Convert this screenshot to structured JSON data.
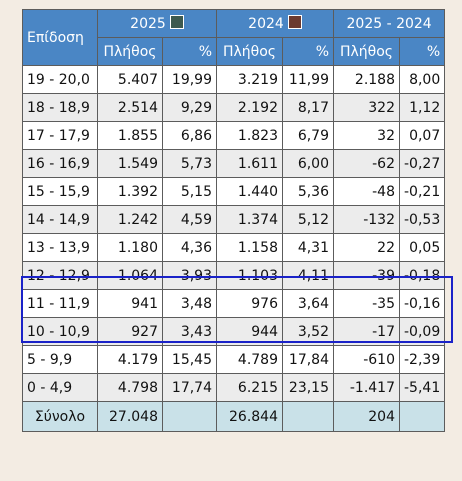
{
  "header": {
    "grade_label": "Επίδοση",
    "year_2025": "2025",
    "year_2024": "2024",
    "diff_label": "2025 - 2024",
    "count_label": "Πλήθος",
    "pct_label": "%"
  },
  "colors": {
    "header_bg": "#4a86c5",
    "swatch_2025": "#3d5a50",
    "swatch_2024": "#6b3a30",
    "highlight": "#1a22c8",
    "total_bg": "#c9e1e8"
  },
  "rows": [
    {
      "range": "19 - 20,0",
      "n2025": "5.407",
      "p2025": "19,99",
      "n2024": "3.219",
      "p2024": "11,99",
      "ndiff": "2.188",
      "pdiff": "8,00"
    },
    {
      "range": "18 - 18,9",
      "n2025": "2.514",
      "p2025": "9,29",
      "n2024": "2.192",
      "p2024": "8,17",
      "ndiff": "322",
      "pdiff": "1,12"
    },
    {
      "range": "17 - 17,9",
      "n2025": "1.855",
      "p2025": "6,86",
      "n2024": "1.823",
      "p2024": "6,79",
      "ndiff": "32",
      "pdiff": "0,07"
    },
    {
      "range": "16 - 16,9",
      "n2025": "1.549",
      "p2025": "5,73",
      "n2024": "1.611",
      "p2024": "6,00",
      "ndiff": "-62",
      "pdiff": "-0,27"
    },
    {
      "range": "15 - 15,9",
      "n2025": "1.392",
      "p2025": "5,15",
      "n2024": "1.440",
      "p2024": "5,36",
      "ndiff": "-48",
      "pdiff": "-0,21"
    },
    {
      "range": "14 - 14,9",
      "n2025": "1.242",
      "p2025": "4,59",
      "n2024": "1.374",
      "p2024": "5,12",
      "ndiff": "-132",
      "pdiff": "-0,53"
    },
    {
      "range": "13 - 13,9",
      "n2025": "1.180",
      "p2025": "4,36",
      "n2024": "1.158",
      "p2024": "4,31",
      "ndiff": "22",
      "pdiff": "0,05"
    },
    {
      "range": "12 - 12,9",
      "n2025": "1.064",
      "p2025": "3,93",
      "n2024": "1.103",
      "p2024": "4,11",
      "ndiff": "-39",
      "pdiff": "-0,18"
    },
    {
      "range": "11 - 11,9",
      "n2025": "941",
      "p2025": "3,48",
      "n2024": "976",
      "p2024": "3,64",
      "ndiff": "-35",
      "pdiff": "-0,16"
    },
    {
      "range": "10 - 10,9",
      "n2025": "927",
      "p2025": "3,43",
      "n2024": "944",
      "p2024": "3,52",
      "ndiff": "-17",
      "pdiff": "-0,09"
    },
    {
      "range": "5 - 9,9",
      "n2025": "4.179",
      "p2025": "15,45",
      "n2024": "4.789",
      "p2024": "17,84",
      "ndiff": "-610",
      "pdiff": "-2,39"
    },
    {
      "range": "0 - 4,9",
      "n2025": "4.798",
      "p2025": "17,74",
      "n2024": "6.215",
      "p2024": "23,15",
      "ndiff": "-1.417",
      "pdiff": "-5,41"
    }
  ],
  "total": {
    "label": "Σύνολο",
    "n2025": "27.048",
    "n2024": "26.844",
    "ndiff": "204"
  }
}
